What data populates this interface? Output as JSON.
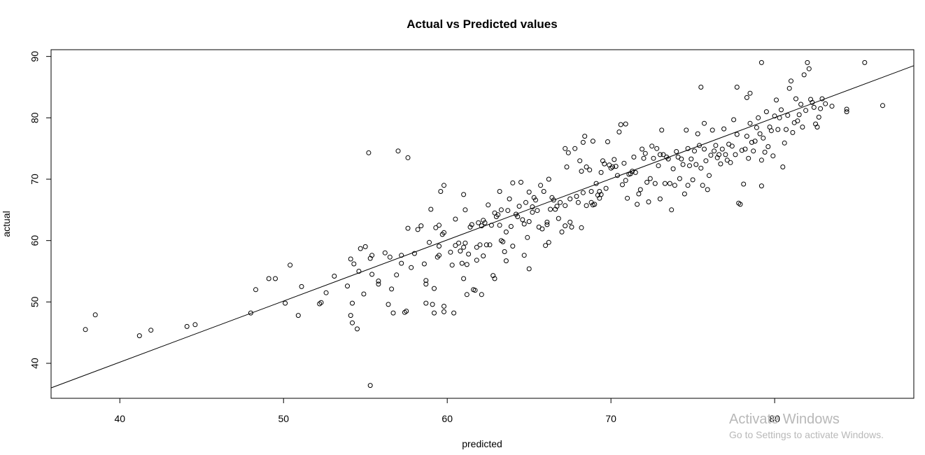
{
  "chart_data": {
    "type": "scatter",
    "title": "Actual vs Predicted values",
    "xlabel": "predicted",
    "ylabel": "actual",
    "xlim": [
      35.8,
      88.5
    ],
    "ylim": [
      34.3,
      91.1
    ],
    "xticks": [
      40,
      50,
      60,
      70,
      80
    ],
    "yticks": [
      40,
      50,
      60,
      70,
      80,
      90
    ],
    "fit_line": {
      "x": [
        35.8,
        88.5
      ],
      "y": [
        36.0,
        88.5
      ]
    },
    "point_color": "#000000",
    "points": [
      [
        37.9,
        45.5
      ],
      [
        38.5,
        47.9
      ],
      [
        41.2,
        44.5
      ],
      [
        41.9,
        45.4
      ],
      [
        44.1,
        46.0
      ],
      [
        44.6,
        46.3
      ],
      [
        48.0,
        48.2
      ],
      [
        48.3,
        52.0
      ],
      [
        49.1,
        53.8
      ],
      [
        49.5,
        53.8
      ],
      [
        50.1,
        49.8
      ],
      [
        50.4,
        56.0
      ],
      [
        50.9,
        47.8
      ],
      [
        51.1,
        52.5
      ],
      [
        52.2,
        49.7
      ],
      [
        52.3,
        49.9
      ],
      [
        52.6,
        51.5
      ],
      [
        53.1,
        54.2
      ],
      [
        53.9,
        52.6
      ],
      [
        54.1,
        57.0
      ],
      [
        54.1,
        47.8
      ],
      [
        54.2,
        46.6
      ],
      [
        54.2,
        49.8
      ],
      [
        54.3,
        56.2
      ],
      [
        54.5,
        45.6
      ],
      [
        54.6,
        55.0
      ],
      [
        54.7,
        58.7
      ],
      [
        54.9,
        51.3
      ],
      [
        55.0,
        59.0
      ],
      [
        55.2,
        74.3
      ],
      [
        55.3,
        57.1
      ],
      [
        55.3,
        36.4
      ],
      [
        55.4,
        54.5
      ],
      [
        55.4,
        57.6
      ],
      [
        55.8,
        53.4
      ],
      [
        55.8,
        52.9
      ],
      [
        56.2,
        58.0
      ],
      [
        56.4,
        49.6
      ],
      [
        56.5,
        57.3
      ],
      [
        56.6,
        52.1
      ],
      [
        56.7,
        48.2
      ],
      [
        56.9,
        54.4
      ],
      [
        57.0,
        74.6
      ],
      [
        57.2,
        56.3
      ],
      [
        57.2,
        57.6
      ],
      [
        57.4,
        48.3
      ],
      [
        57.5,
        48.5
      ],
      [
        57.6,
        73.5
      ],
      [
        57.6,
        62.0
      ],
      [
        57.8,
        55.6
      ],
      [
        58.0,
        57.9
      ],
      [
        58.2,
        61.8
      ],
      [
        58.4,
        62.4
      ],
      [
        58.6,
        56.2
      ],
      [
        58.7,
        53.5
      ],
      [
        58.7,
        52.9
      ],
      [
        58.7,
        49.8
      ],
      [
        58.9,
        59.7
      ],
      [
        59.0,
        65.1
      ],
      [
        59.1,
        49.6
      ],
      [
        59.2,
        48.2
      ],
      [
        59.2,
        52.2
      ],
      [
        59.3,
        62.1
      ],
      [
        59.4,
        57.3
      ],
      [
        59.5,
        62.5
      ],
      [
        59.5,
        59.1
      ],
      [
        59.5,
        57.6
      ],
      [
        59.6,
        68.0
      ],
      [
        59.7,
        61.0
      ],
      [
        59.8,
        69.0
      ],
      [
        59.8,
        61.3
      ],
      [
        59.8,
        49.3
      ],
      [
        59.8,
        48.4
      ],
      [
        60.2,
        58.1
      ],
      [
        60.3,
        56.0
      ],
      [
        60.4,
        48.2
      ],
      [
        60.5,
        63.5
      ],
      [
        60.5,
        59.2
      ],
      [
        60.7,
        59.6
      ],
      [
        60.8,
        58.3
      ],
      [
        60.9,
        56.3
      ],
      [
        61.0,
        58.9
      ],
      [
        61.0,
        53.8
      ],
      [
        61.0,
        67.5
      ],
      [
        61.1,
        65.0
      ],
      [
        61.1,
        59.6
      ],
      [
        61.2,
        56.1
      ],
      [
        61.2,
        51.2
      ],
      [
        61.3,
        57.8
      ],
      [
        61.4,
        62.2
      ],
      [
        61.5,
        62.6
      ],
      [
        61.6,
        52.0
      ],
      [
        61.7,
        51.9
      ],
      [
        61.8,
        56.8
      ],
      [
        61.8,
        58.9
      ],
      [
        61.9,
        62.9
      ],
      [
        62.0,
        59.3
      ],
      [
        62.1,
        62.4
      ],
      [
        62.1,
        51.2
      ],
      [
        62.2,
        63.3
      ],
      [
        62.2,
        57.5
      ],
      [
        62.3,
        62.9
      ],
      [
        62.4,
        59.3
      ],
      [
        62.5,
        65.8
      ],
      [
        62.6,
        59.3
      ],
      [
        62.7,
        62.5
      ],
      [
        62.8,
        54.3
      ],
      [
        62.9,
        64.5
      ],
      [
        62.9,
        53.8
      ],
      [
        63.0,
        63.9
      ],
      [
        63.1,
        64.2
      ],
      [
        63.2,
        68.0
      ],
      [
        63.2,
        62.5
      ],
      [
        63.3,
        65.0
      ],
      [
        63.3,
        60.0
      ],
      [
        63.4,
        59.8
      ],
      [
        63.5,
        58.2
      ],
      [
        63.6,
        61.4
      ],
      [
        63.6,
        56.7
      ],
      [
        63.7,
        64.9
      ],
      [
        63.8,
        66.8
      ],
      [
        63.9,
        62.3
      ],
      [
        64.0,
        59.1
      ],
      [
        64.0,
        69.4
      ],
      [
        64.2,
        64.3
      ],
      [
        64.3,
        63.9
      ],
      [
        64.4,
        65.6
      ],
      [
        64.5,
        69.5
      ],
      [
        64.6,
        63.4
      ],
      [
        64.7,
        62.7
      ],
      [
        64.7,
        57.6
      ],
      [
        64.8,
        66.2
      ],
      [
        64.9,
        60.5
      ],
      [
        65.0,
        67.9
      ],
      [
        65.0,
        55.4
      ],
      [
        65.0,
        63.1
      ],
      [
        65.2,
        65.5
      ],
      [
        65.2,
        64.6
      ],
      [
        65.3,
        67.0
      ],
      [
        65.4,
        66.6
      ],
      [
        65.5,
        64.9
      ],
      [
        65.6,
        62.2
      ],
      [
        65.7,
        69.0
      ],
      [
        65.8,
        61.9
      ],
      [
        65.9,
        68.0
      ],
      [
        66.0,
        59.2
      ],
      [
        66.1,
        63.0
      ],
      [
        66.1,
        62.6
      ],
      [
        66.2,
        70.0
      ],
      [
        66.2,
        59.7
      ],
      [
        66.3,
        65.1
      ],
      [
        66.4,
        67.0
      ],
      [
        66.5,
        66.6
      ],
      [
        66.6,
        65.1
      ],
      [
        66.7,
        65.6
      ],
      [
        66.8,
        63.6
      ],
      [
        66.9,
        66.2
      ],
      [
        67.0,
        61.4
      ],
      [
        67.2,
        65.7
      ],
      [
        67.2,
        62.4
      ],
      [
        67.2,
        75.0
      ],
      [
        67.3,
        72.0
      ],
      [
        67.4,
        74.3
      ],
      [
        67.5,
        63.0
      ],
      [
        67.5,
        66.8
      ],
      [
        67.6,
        62.2
      ],
      [
        67.8,
        75.0
      ],
      [
        67.9,
        67.2
      ],
      [
        68.0,
        66.2
      ],
      [
        68.1,
        73.0
      ],
      [
        68.2,
        62.1
      ],
      [
        68.2,
        71.3
      ],
      [
        68.3,
        67.8
      ],
      [
        68.3,
        76.0
      ],
      [
        68.4,
        77.0
      ],
      [
        68.5,
        72.0
      ],
      [
        68.5,
        65.7
      ],
      [
        68.7,
        71.5
      ],
      [
        68.8,
        66.2
      ],
      [
        68.8,
        68.0
      ],
      [
        68.9,
        65.8
      ],
      [
        69.0,
        65.9
      ],
      [
        69.1,
        69.3
      ],
      [
        69.2,
        67.4
      ],
      [
        69.3,
        68.0
      ],
      [
        69.3,
        66.9
      ],
      [
        69.4,
        71.1
      ],
      [
        69.4,
        67.5
      ],
      [
        69.5,
        73.0
      ],
      [
        69.6,
        72.5
      ],
      [
        69.7,
        68.5
      ],
      [
        69.8,
        76.1
      ],
      [
        69.9,
        72.3
      ],
      [
        70.0,
        71.8
      ],
      [
        70.1,
        72.0
      ],
      [
        70.2,
        73.2
      ],
      [
        70.3,
        72.1
      ],
      [
        70.4,
        70.6
      ],
      [
        70.5,
        77.7
      ],
      [
        70.6,
        78.9
      ],
      [
        70.7,
        69.1
      ],
      [
        70.8,
        72.6
      ],
      [
        70.9,
        69.8
      ],
      [
        71.0,
        66.9
      ],
      [
        71.1,
        70.8
      ],
      [
        71.2,
        70.9
      ],
      [
        71.3,
        71.3
      ],
      [
        71.4,
        73.6
      ],
      [
        71.5,
        71.1
      ],
      [
        71.6,
        65.9
      ],
      [
        71.7,
        67.6
      ],
      [
        71.8,
        68.3
      ],
      [
        71.9,
        74.9
      ],
      [
        72.0,
        73.4
      ],
      [
        72.1,
        74.2
      ],
      [
        72.2,
        69.5
      ],
      [
        72.3,
        66.3
      ],
      [
        72.4,
        70.1
      ],
      [
        72.5,
        75.4
      ],
      [
        72.6,
        73.4
      ],
      [
        72.7,
        69.3
      ],
      [
        72.8,
        75.0
      ],
      [
        72.9,
        72.2
      ],
      [
        73.0,
        74.0
      ],
      [
        73.0,
        66.8
      ],
      [
        73.1,
        78.0
      ],
      [
        73.2,
        74.0
      ],
      [
        73.3,
        69.3
      ],
      [
        73.4,
        73.6
      ],
      [
        73.5,
        73.3
      ],
      [
        73.6,
        69.3
      ],
      [
        73.7,
        65.0
      ],
      [
        73.8,
        71.7
      ],
      [
        73.9,
        69.0
      ],
      [
        74.0,
        74.5
      ],
      [
        74.1,
        73.6
      ],
      [
        74.2,
        70.1
      ],
      [
        74.3,
        73.3
      ],
      [
        74.4,
        72.4
      ],
      [
        74.5,
        67.6
      ],
      [
        74.6,
        78.0
      ],
      [
        74.7,
        75.0
      ],
      [
        74.7,
        69.0
      ],
      [
        74.8,
        72.2
      ],
      [
        74.9,
        73.3
      ],
      [
        75.0,
        69.9
      ],
      [
        75.1,
        74.6
      ],
      [
        75.2,
        72.4
      ],
      [
        75.3,
        77.4
      ],
      [
        75.4,
        75.5
      ],
      [
        75.5,
        71.8
      ],
      [
        75.6,
        69.0
      ],
      [
        75.7,
        74.9
      ],
      [
        75.7,
        79.1
      ],
      [
        75.8,
        73.0
      ],
      [
        75.9,
        68.3
      ],
      [
        76.0,
        70.6
      ],
      [
        76.1,
        73.9
      ],
      [
        76.2,
        78.0
      ],
      [
        76.3,
        74.6
      ],
      [
        76.4,
        75.5
      ],
      [
        76.5,
        73.5
      ],
      [
        76.6,
        74.0
      ],
      [
        76.7,
        72.5
      ],
      [
        76.8,
        74.9
      ],
      [
        76.9,
        78.2
      ],
      [
        77.0,
        74.0
      ],
      [
        77.1,
        73.1
      ],
      [
        77.2,
        75.7
      ],
      [
        77.3,
        72.7
      ],
      [
        77.4,
        75.4
      ],
      [
        77.5,
        79.7
      ],
      [
        77.6,
        74.0
      ],
      [
        77.7,
        77.3
      ],
      [
        77.8,
        66.1
      ],
      [
        77.9,
        65.9
      ],
      [
        78.0,
        74.7
      ],
      [
        78.1,
        69.2
      ],
      [
        78.2,
        74.9
      ],
      [
        78.3,
        77.0
      ],
      [
        78.4,
        73.4
      ],
      [
        78.5,
        79.1
      ],
      [
        78.6,
        76.0
      ],
      [
        78.7,
        74.6
      ],
      [
        78.8,
        76.2
      ],
      [
        78.9,
        78.4
      ],
      [
        79.0,
        80.0
      ],
      [
        79.1,
        77.4
      ],
      [
        79.2,
        68.9
      ],
      [
        79.2,
        73.1
      ],
      [
        79.3,
        76.7
      ],
      [
        79.4,
        74.4
      ],
      [
        79.5,
        81.0
      ],
      [
        79.6,
        75.3
      ],
      [
        79.7,
        78.5
      ],
      [
        79.8,
        77.9
      ],
      [
        79.9,
        73.8
      ],
      [
        80.0,
        80.3
      ],
      [
        80.1,
        82.9
      ],
      [
        80.2,
        78.1
      ],
      [
        80.3,
        80.0
      ],
      [
        80.4,
        81.3
      ],
      [
        80.5,
        72.0
      ],
      [
        80.6,
        75.9
      ],
      [
        80.7,
        78.1
      ],
      [
        80.8,
        80.4
      ],
      [
        80.9,
        84.8
      ],
      [
        81.0,
        86.0
      ],
      [
        81.1,
        77.6
      ],
      [
        81.2,
        79.2
      ],
      [
        81.3,
        83.1
      ],
      [
        81.4,
        79.5
      ],
      [
        81.5,
        80.5
      ],
      [
        81.6,
        82.2
      ],
      [
        81.7,
        78.5
      ],
      [
        81.8,
        87.0
      ],
      [
        81.9,
        81.2
      ],
      [
        82.0,
        89.0
      ],
      [
        82.1,
        88.0
      ],
      [
        82.2,
        83.0
      ],
      [
        82.3,
        82.5
      ],
      [
        82.4,
        81.7
      ],
      [
        82.5,
        79.0
      ],
      [
        82.6,
        78.5
      ],
      [
        82.7,
        80.1
      ],
      [
        82.8,
        81.5
      ],
      [
        82.9,
        83.1
      ],
      [
        83.1,
        82.3
      ],
      [
        83.5,
        81.9
      ],
      [
        84.4,
        81.4
      ],
      [
        84.4,
        81.0
      ],
      [
        85.5,
        89.0
      ],
      [
        86.6,
        82.0
      ],
      [
        78.3,
        83.3
      ],
      [
        77.7,
        85.0
      ],
      [
        78.5,
        84.0
      ],
      [
        79.2,
        89.0
      ],
      [
        75.5,
        85.0
      ],
      [
        68.9,
        76.2
      ],
      [
        70.9,
        79.0
      ]
    ]
  },
  "watermark": {
    "title": "Activate Windows",
    "subtitle": "Go to Settings to activate Windows."
  }
}
